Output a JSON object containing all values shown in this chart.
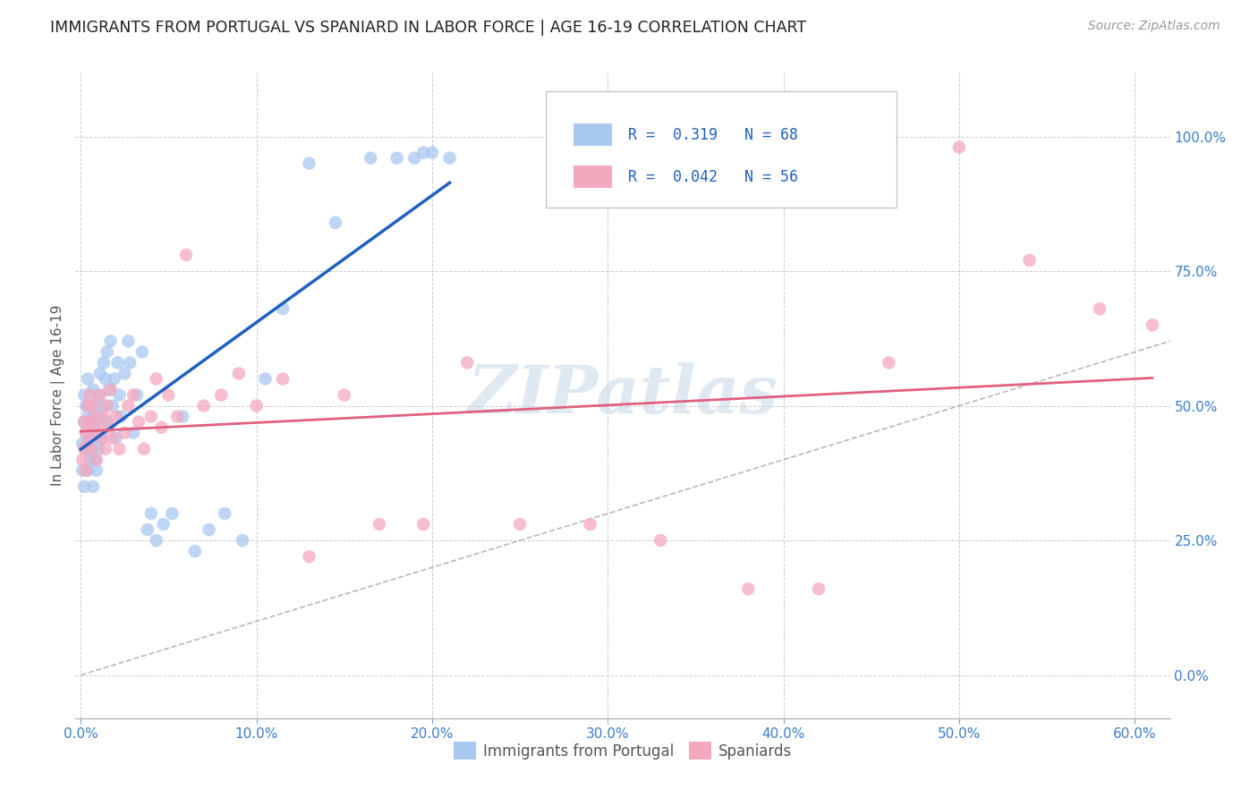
{
  "title": "IMMIGRANTS FROM PORTUGAL VS SPANIARD IN LABOR FORCE | AGE 16-19 CORRELATION CHART",
  "source": "Source: ZipAtlas.com",
  "ylabel_label": "In Labor Force | Age 16-19",
  "legend_label1": "Immigrants from Portugal",
  "legend_label2": "Spaniards",
  "R1": "0.319",
  "N1": "68",
  "R2": "0.042",
  "N2": "56",
  "color1": "#a8c8f0",
  "color2": "#f4a8be",
  "trend1_color": "#2060c0",
  "trend2_color": "#e06080",
  "diag_color": "#b8b8b8",
  "background_color": "#ffffff",
  "grid_color": "#cccccc",
  "xlim": [
    -0.003,
    0.62
  ],
  "ylim": [
    -0.08,
    1.12
  ],
  "xticks": [
    0.0,
    0.1,
    0.2,
    0.3,
    0.4,
    0.5,
    0.6
  ],
  "yticks": [
    0.0,
    0.25,
    0.5,
    0.75,
    1.0
  ],
  "portugal_x": [
    0.001,
    0.001,
    0.002,
    0.002,
    0.002,
    0.003,
    0.003,
    0.003,
    0.004,
    0.004,
    0.004,
    0.005,
    0.005,
    0.005,
    0.006,
    0.006,
    0.007,
    0.007,
    0.007,
    0.008,
    0.008,
    0.008,
    0.009,
    0.009,
    0.01,
    0.01,
    0.011,
    0.011,
    0.012,
    0.013,
    0.013,
    0.014,
    0.015,
    0.015,
    0.016,
    0.017,
    0.018,
    0.019,
    0.02,
    0.021,
    0.022,
    0.023,
    0.025,
    0.027,
    0.028,
    0.03,
    0.032,
    0.035,
    0.038,
    0.04,
    0.043,
    0.047,
    0.052,
    0.058,
    0.065,
    0.073,
    0.082,
    0.092,
    0.105,
    0.115,
    0.13,
    0.145,
    0.165,
    0.18,
    0.19,
    0.195,
    0.2,
    0.21
  ],
  "portugal_y": [
    0.38,
    0.43,
    0.35,
    0.47,
    0.52,
    0.42,
    0.45,
    0.5,
    0.38,
    0.48,
    0.55,
    0.4,
    0.44,
    0.5,
    0.42,
    0.47,
    0.35,
    0.48,
    0.53,
    0.4,
    0.46,
    0.5,
    0.38,
    0.44,
    0.42,
    0.52,
    0.48,
    0.56,
    0.44,
    0.5,
    0.58,
    0.55,
    0.47,
    0.6,
    0.53,
    0.62,
    0.5,
    0.55,
    0.44,
    0.58,
    0.52,
    0.48,
    0.56,
    0.62,
    0.58,
    0.45,
    0.52,
    0.6,
    0.27,
    0.3,
    0.25,
    0.28,
    0.3,
    0.48,
    0.23,
    0.27,
    0.3,
    0.25,
    0.55,
    0.68,
    0.95,
    0.84,
    0.96,
    0.96,
    0.96,
    0.97,
    0.97,
    0.96
  ],
  "spaniard_x": [
    0.001,
    0.002,
    0.002,
    0.003,
    0.003,
    0.004,
    0.004,
    0.005,
    0.005,
    0.006,
    0.007,
    0.007,
    0.008,
    0.009,
    0.01,
    0.011,
    0.012,
    0.013,
    0.014,
    0.015,
    0.016,
    0.017,
    0.018,
    0.02,
    0.022,
    0.025,
    0.027,
    0.03,
    0.033,
    0.036,
    0.04,
    0.043,
    0.046,
    0.05,
    0.055,
    0.06,
    0.07,
    0.08,
    0.09,
    0.1,
    0.115,
    0.13,
    0.15,
    0.17,
    0.195,
    0.22,
    0.25,
    0.29,
    0.33,
    0.38,
    0.42,
    0.46,
    0.5,
    0.54,
    0.58,
    0.61
  ],
  "spaniard_y": [
    0.4,
    0.42,
    0.47,
    0.38,
    0.45,
    0.5,
    0.43,
    0.47,
    0.52,
    0.42,
    0.45,
    0.5,
    0.48,
    0.4,
    0.46,
    0.52,
    0.44,
    0.48,
    0.42,
    0.5,
    0.46,
    0.53,
    0.44,
    0.48,
    0.42,
    0.45,
    0.5,
    0.52,
    0.47,
    0.42,
    0.48,
    0.55,
    0.46,
    0.52,
    0.48,
    0.78,
    0.5,
    0.52,
    0.56,
    0.5,
    0.55,
    0.22,
    0.52,
    0.28,
    0.28,
    0.58,
    0.28,
    0.28,
    0.25,
    0.16,
    0.16,
    0.58,
    0.98,
    0.77,
    0.68,
    0.65
  ]
}
